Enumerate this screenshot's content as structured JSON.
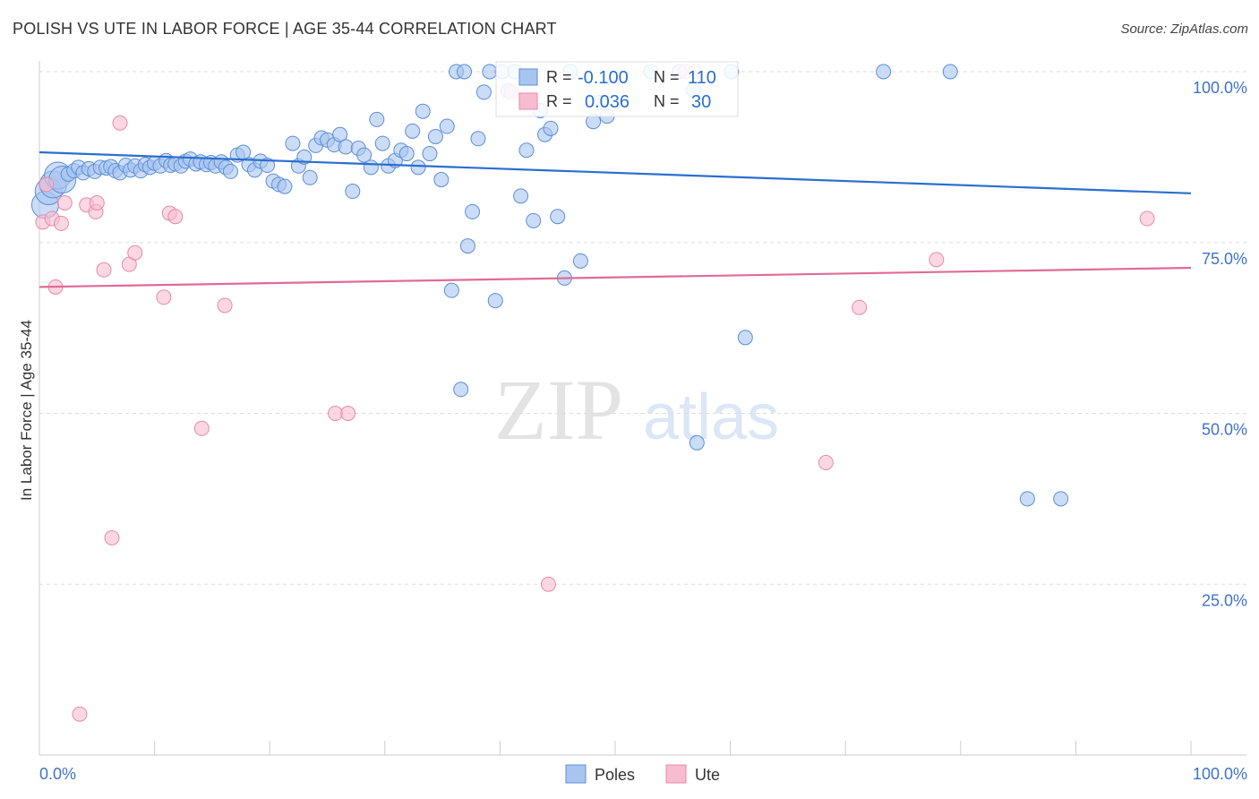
{
  "header": {
    "title": "POLISH VS UTE IN LABOR FORCE | AGE 35-44 CORRELATION CHART",
    "source": "Source: ZipAtlas.com"
  },
  "watermark": {
    "zip": "ZIP",
    "atlas": "atlas"
  },
  "chart_data": {
    "type": "scatter",
    "ylabel": "In Labor Force | Age 35-44",
    "xlim": [
      0,
      100
    ],
    "ylim": [
      0,
      105
    ],
    "x_tick_labels": [
      {
        "value": 0,
        "label": "0.0%"
      },
      {
        "value": 100,
        "label": "100.0%"
      }
    ],
    "y_tick_labels": [
      {
        "value": 25,
        "label": "25.0%"
      },
      {
        "value": 50,
        "label": "50.0%"
      },
      {
        "value": 75,
        "label": "75.0%"
      },
      {
        "value": 100,
        "label": "100.0%"
      }
    ],
    "legend_stats": [
      {
        "series": "Poles",
        "r_label": "R =",
        "r_value": "-0.100",
        "n_label": "N =",
        "n_value": "110"
      },
      {
        "series": "Ute",
        "r_label": "R =",
        "r_value": "0.036",
        "n_label": "N =",
        "n_value": "30"
      }
    ],
    "colors": {
      "Poles": {
        "fill": "#a8c5f0",
        "stroke": "#5b8fd9",
        "line": "#2a6fcf"
      },
      "Ute": {
        "fill": "#f7bcd0",
        "stroke": "#e88aab",
        "line": "#e06b96"
      }
    },
    "series": [
      {
        "name": "Poles",
        "trend": {
          "y_at_0": 88.2,
          "y_at_100": 82.2
        },
        "points": [
          {
            "x": 0.5,
            "y": 80.5,
            "big": true
          },
          {
            "x": 0.8,
            "y": 82.5,
            "big": true
          },
          {
            "x": 1.2,
            "y": 83.5,
            "big": true
          },
          {
            "x": 1.6,
            "y": 84.8,
            "big": true
          },
          {
            "x": 2.0,
            "y": 84.2,
            "big": true
          },
          {
            "x": 2.5,
            "y": 85.0
          },
          {
            "x": 3.0,
            "y": 85.5
          },
          {
            "x": 3.4,
            "y": 86.0
          },
          {
            "x": 3.8,
            "y": 85.2
          },
          {
            "x": 4.3,
            "y": 85.8
          },
          {
            "x": 4.8,
            "y": 85.4
          },
          {
            "x": 5.3,
            "y": 86.0
          },
          {
            "x": 5.8,
            "y": 85.9
          },
          {
            "x": 6.2,
            "y": 86.1
          },
          {
            "x": 6.6,
            "y": 85.5
          },
          {
            "x": 7.0,
            "y": 85.2
          },
          {
            "x": 7.5,
            "y": 86.3
          },
          {
            "x": 7.9,
            "y": 85.6
          },
          {
            "x": 8.3,
            "y": 86.2
          },
          {
            "x": 8.8,
            "y": 85.5
          },
          {
            "x": 9.2,
            "y": 86.4
          },
          {
            "x": 9.6,
            "y": 86.0
          },
          {
            "x": 10.0,
            "y": 86.6
          },
          {
            "x": 10.5,
            "y": 86.2
          },
          {
            "x": 11.0,
            "y": 87.0
          },
          {
            "x": 11.4,
            "y": 86.3
          },
          {
            "x": 11.8,
            "y": 86.5
          },
          {
            "x": 12.3,
            "y": 86.2
          },
          {
            "x": 12.7,
            "y": 86.9
          },
          {
            "x": 13.1,
            "y": 87.2
          },
          {
            "x": 13.6,
            "y": 86.5
          },
          {
            "x": 14.0,
            "y": 86.8
          },
          {
            "x": 14.5,
            "y": 86.4
          },
          {
            "x": 14.9,
            "y": 86.7
          },
          {
            "x": 15.3,
            "y": 86.2
          },
          {
            "x": 15.8,
            "y": 86.8
          },
          {
            "x": 16.2,
            "y": 86.0
          },
          {
            "x": 16.6,
            "y": 85.4
          },
          {
            "x": 17.2,
            "y": 87.8
          },
          {
            "x": 17.7,
            "y": 88.2
          },
          {
            "x": 18.2,
            "y": 86.4
          },
          {
            "x": 18.7,
            "y": 85.6
          },
          {
            "x": 19.2,
            "y": 86.9
          },
          {
            "x": 19.8,
            "y": 86.3
          },
          {
            "x": 20.3,
            "y": 84.0
          },
          {
            "x": 20.8,
            "y": 83.5
          },
          {
            "x": 21.3,
            "y": 83.2
          },
          {
            "x": 22.0,
            "y": 89.5
          },
          {
            "x": 22.5,
            "y": 86.2
          },
          {
            "x": 23.0,
            "y": 87.5
          },
          {
            "x": 23.5,
            "y": 84.5
          },
          {
            "x": 24.0,
            "y": 89.2
          },
          {
            "x": 24.5,
            "y": 90.3
          },
          {
            "x": 25.0,
            "y": 90.0
          },
          {
            "x": 25.6,
            "y": 89.3
          },
          {
            "x": 26.1,
            "y": 90.8
          },
          {
            "x": 26.6,
            "y": 89.0
          },
          {
            "x": 27.2,
            "y": 82.5
          },
          {
            "x": 27.7,
            "y": 88.8
          },
          {
            "x": 28.2,
            "y": 87.8
          },
          {
            "x": 28.8,
            "y": 86.0
          },
          {
            "x": 29.3,
            "y": 93.0
          },
          {
            "x": 29.8,
            "y": 89.5
          },
          {
            "x": 30.3,
            "y": 86.2
          },
          {
            "x": 30.9,
            "y": 87.0
          },
          {
            "x": 31.4,
            "y": 88.5
          },
          {
            "x": 31.9,
            "y": 88.0
          },
          {
            "x": 32.4,
            "y": 91.3
          },
          {
            "x": 32.9,
            "y": 86.0
          },
          {
            "x": 33.3,
            "y": 94.2
          },
          {
            "x": 33.9,
            "y": 88.0
          },
          {
            "x": 34.4,
            "y": 90.5
          },
          {
            "x": 34.9,
            "y": 84.2
          },
          {
            "x": 35.4,
            "y": 92.0
          },
          {
            "x": 35.8,
            "y": 68.0
          },
          {
            "x": 36.2,
            "y": 100.0
          },
          {
            "x": 36.6,
            "y": 53.5
          },
          {
            "x": 37.2,
            "y": 74.5
          },
          {
            "x": 37.6,
            "y": 79.5
          },
          {
            "x": 38.1,
            "y": 90.2
          },
          {
            "x": 38.6,
            "y": 97.0
          },
          {
            "x": 39.1,
            "y": 100.0
          },
          {
            "x": 39.6,
            "y": 66.5
          },
          {
            "x": 40.2,
            "y": 100.0
          },
          {
            "x": 40.7,
            "y": 97.2
          },
          {
            "x": 41.3,
            "y": 100.0
          },
          {
            "x": 41.8,
            "y": 81.8
          },
          {
            "x": 42.3,
            "y": 88.5
          },
          {
            "x": 42.9,
            "y": 78.2
          },
          {
            "x": 43.5,
            "y": 94.3
          },
          {
            "x": 43.9,
            "y": 90.8
          },
          {
            "x": 44.4,
            "y": 91.7
          },
          {
            "x": 45.0,
            "y": 78.8
          },
          {
            "x": 45.6,
            "y": 69.8
          },
          {
            "x": 46.1,
            "y": 100.0
          },
          {
            "x": 47.0,
            "y": 72.3
          },
          {
            "x": 48.1,
            "y": 92.7
          },
          {
            "x": 48.7,
            "y": 95.5
          },
          {
            "x": 49.3,
            "y": 93.5
          },
          {
            "x": 53.1,
            "y": 100.0
          },
          {
            "x": 55.6,
            "y": 100.0
          },
          {
            "x": 56.8,
            "y": 97.3
          },
          {
            "x": 57.1,
            "y": 45.7
          },
          {
            "x": 60.1,
            "y": 100.0
          },
          {
            "x": 61.3,
            "y": 61.1
          },
          {
            "x": 73.3,
            "y": 100.0
          },
          {
            "x": 79.1,
            "y": 100.0
          },
          {
            "x": 85.8,
            "y": 37.5
          },
          {
            "x": 88.7,
            "y": 37.5
          },
          {
            "x": 36.9,
            "y": 100.0
          }
        ]
      },
      {
        "name": "Ute",
        "trend": {
          "y_at_0": 68.5,
          "y_at_100": 71.3
        },
        "points": [
          {
            "x": 0.3,
            "y": 78.0
          },
          {
            "x": 0.6,
            "y": 83.5
          },
          {
            "x": 1.1,
            "y": 78.5
          },
          {
            "x": 1.4,
            "y": 68.5
          },
          {
            "x": 1.9,
            "y": 77.8
          },
          {
            "x": 2.2,
            "y": 80.8
          },
          {
            "x": 3.5,
            "y": 6.0
          },
          {
            "x": 4.1,
            "y": 80.5
          },
          {
            "x": 4.9,
            "y": 79.5
          },
          {
            "x": 5.0,
            "y": 80.8
          },
          {
            "x": 5.6,
            "y": 71.0
          },
          {
            "x": 6.3,
            "y": 31.8
          },
          {
            "x": 7.0,
            "y": 92.5
          },
          {
            "x": 7.8,
            "y": 71.8
          },
          {
            "x": 8.3,
            "y": 73.5
          },
          {
            "x": 10.8,
            "y": 67.0
          },
          {
            "x": 11.3,
            "y": 79.3
          },
          {
            "x": 11.8,
            "y": 78.8
          },
          {
            "x": 14.1,
            "y": 47.8
          },
          {
            "x": 16.1,
            "y": 65.8
          },
          {
            "x": 25.7,
            "y": 50.0
          },
          {
            "x": 26.8,
            "y": 50.0
          },
          {
            "x": 44.2,
            "y": 25.0
          },
          {
            "x": 56.1,
            "y": 100.0
          },
          {
            "x": 57.0,
            "y": 100.0
          },
          {
            "x": 68.3,
            "y": 42.8
          },
          {
            "x": 71.2,
            "y": 65.5
          },
          {
            "x": 77.9,
            "y": 72.5
          },
          {
            "x": 96.2,
            "y": 78.5
          },
          {
            "x": 41.0,
            "y": 97.0
          }
        ]
      }
    ],
    "legend": [
      {
        "label": "Poles"
      },
      {
        "label": "Ute"
      }
    ]
  }
}
